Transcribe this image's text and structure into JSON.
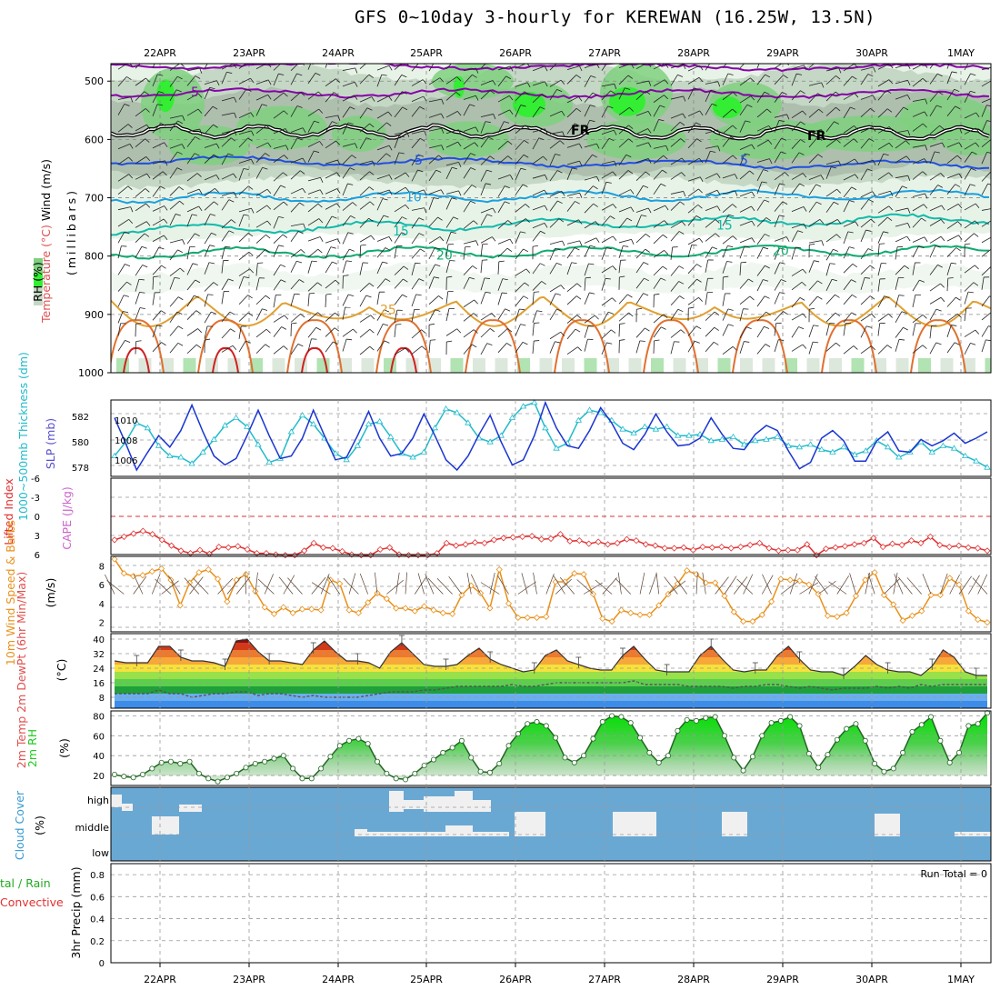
{
  "title": "GFS 0~10day 3-hourly for KEREWAN (16.25W, 13.5N)",
  "dates": [
    "22APR",
    "23APR",
    "24APR",
    "25APR",
    "26APR",
    "27APR",
    "28APR",
    "29APR",
    "30APR",
    "1MAY"
  ],
  "colors": {
    "rh_light": "#e8f3e8",
    "rh_mid": "#c5d8c5",
    "rh_gray": "#aebfae",
    "rh_green": "#7fd07f",
    "rh_bright": "#33ee33",
    "temp_minus5": "#8800aa",
    "temp_zero": "#000000",
    "temp_5": "#1f4fe0",
    "temp_10": "#1aa0e0",
    "temp_15": "#10bbaa",
    "temp_20": "#10aa70",
    "temp_25": "#e0a030",
    "temp_30": "#e07030",
    "temp_35": "#d02020",
    "slp": "#1a35d0",
    "thickness": "#20bbcc",
    "lifted": "#e03030",
    "cape": "#cc66cc",
    "wind10": "#e8901a",
    "cloud": "#6aa8d4",
    "cloud_gap": "#f0f0f0",
    "rh2m": "#22cc22",
    "precip_rain": "#22aa22",
    "precip_conv": "#e03030"
  },
  "panels": {
    "upper": {
      "ylabel_wind": "Wind (m/s)",
      "ylabel_temp": "Temperature (°C)",
      "ylabel_rh": "RH (%)",
      "ylabel_pressure": "(millibars)",
      "yticks": [
        "500",
        "600",
        "700",
        "800",
        "900",
        "1000"
      ],
      "contour_labels": [
        "-5",
        "FR",
        "FR",
        "5",
        "5",
        "10",
        "15",
        "15",
        "20",
        "20",
        "25"
      ]
    },
    "slp": {
      "ylabel_thick": "1000~500mb Thickness (dm)",
      "ylabel_slp": "SLP (mb)",
      "yticks_left": [
        "582",
        "580",
        "578"
      ],
      "yticks_right": [
        "1010",
        "1008",
        "1006"
      ]
    },
    "li": {
      "ylabel_li": "Lifted Index",
      "ylabel_cape": "CAPE (J/kg)",
      "yticks": [
        "-6",
        "-3",
        "0",
        "3",
        "6"
      ]
    },
    "wind10": {
      "ylabel": "10m Wind Speed & Barbs",
      "unit": "(m/s)",
      "yticks": [
        "8",
        "6",
        "4",
        "2"
      ]
    },
    "temp2m": {
      "ylabel": "2m Temp 2m DewPt (6hr Min/Max)",
      "unit": "(°C)",
      "yticks": [
        "40",
        "32",
        "24",
        "16",
        "8"
      ]
    },
    "rh2m": {
      "ylabel": "2m RH",
      "unit": "(%)",
      "yticks": [
        "80",
        "60",
        "40",
        "20"
      ]
    },
    "cloud": {
      "ylabel": "Cloud Cover",
      "unit": "(%)",
      "levels": [
        "high",
        "middle",
        "low"
      ]
    },
    "precip": {
      "ylabel_total": "tal / Rain",
      "ylabel_conv": "Convective",
      "ylabel_main": "3hr Precip (mm)",
      "yticks": [
        "0.8",
        "0.6",
        "0.4",
        "0.2",
        "0"
      ],
      "run_total": "Run Total = 0"
    }
  },
  "chart_data": [
    {
      "type": "line",
      "name": "SLP and thickness",
      "series": [
        {
          "name": "SLP (mb)",
          "values": [
            1009.6,
            1007.6,
            1005.5,
            1006.9,
            1008.2,
            1007.3,
            1008.6,
            1010.6,
            1008.5,
            1006.6,
            1005.9,
            1006.4,
            1008.2,
            1010.2,
            1008.2,
            1006.4,
            1006.6,
            1008.0,
            1010.2,
            1008.2,
            1006.3,
            1006.5,
            1008.2,
            1010.1,
            1008.0,
            1006.6,
            1006.8,
            1008.0,
            1009.9,
            1008.2,
            1006.3,
            1005.5,
            1006.6,
            1008.3,
            1009.8,
            1007.7,
            1005.9,
            1006.3,
            1008.2,
            1010.8,
            1008.8,
            1007.4,
            1007.2,
            1008.6,
            1010.4,
            1009.2,
            1007.6,
            1007.1,
            1008.3,
            1009.9,
            1008.5,
            1007.4,
            1007.5,
            1008.0,
            1009.6,
            1008.3,
            1007.2,
            1007.1,
            1008.3,
            1009.0,
            1008.6,
            1007.0,
            1005.6,
            1006.1,
            1008.0,
            1008.6,
            1007.8,
            1006.2,
            1006.2,
            1007.8,
            1008.5,
            1007.0,
            1006.9,
            1007.9,
            1007.4,
            1007.8,
            1008.4,
            1007.6,
            1008.0,
            1008.5
          ]
        },
        {
          "name": "Thickness (dm)",
          "values": [
            578.6,
            579.7,
            581.2,
            580.8,
            579.4,
            578.6,
            578.5,
            578.0,
            578.9,
            579.9,
            581.0,
            581.6,
            580.9,
            579.5,
            578.1,
            578.4,
            580.5,
            581.8,
            581.1,
            580.0,
            578.8,
            578.3,
            579.4,
            581.1,
            581.3,
            580.1,
            578.8,
            578.5,
            578.9,
            580.8,
            582.3,
            582.0,
            581.2,
            580.0,
            579.7,
            580.2,
            581.6,
            582.5,
            582.8,
            580.8,
            579.2,
            579.6,
            581.4,
            582.2,
            582.0,
            581.4,
            580.7,
            580.4,
            580.9,
            580.7,
            580.9,
            580.2,
            580.2,
            580.3,
            579.8,
            579.9,
            580.1,
            579.5,
            579.8,
            579.9,
            580.1,
            579.4,
            579.3,
            579.5,
            579.1,
            578.9,
            579.3,
            578.7,
            579.0,
            579.8,
            579.3,
            578.5,
            578.9,
            579.7,
            578.9,
            579.4,
            579.2,
            578.6,
            578.2,
            577.7
          ]
        }
      ],
      "ylim_left": [
        577,
        583
      ],
      "ylim_right": [
        1005,
        1011
      ]
    },
    {
      "type": "line",
      "name": "Lifted Index",
      "values": [
        3.7,
        3.2,
        2.7,
        2.3,
        2.8,
        3.7,
        4.6,
        5.4,
        5.8,
        5.3,
        5.9,
        4.8,
        4.9,
        4.7,
        5.2,
        5.8,
        5.8,
        6.0,
        6.1,
        6.1,
        5.4,
        4.2,
        4.9,
        5.0,
        5.5,
        6.0,
        6.1,
        6.1,
        5.2,
        4.9,
        6.0,
        6.1,
        6.1,
        6.1,
        5.8,
        4.2,
        4.6,
        4.4,
        4.1,
        4.2,
        3.7,
        3.4,
        3.3,
        3.2,
        3.1,
        3.6,
        3.5,
        2.8,
        3.9,
        3.8,
        4.3,
        4.0,
        4.4,
        4.2,
        3.6,
        3.8,
        4.4,
        4.6,
        5.0,
        5.0,
        4.9,
        5.3,
        4.8,
        4.9,
        4.8,
        5.0,
        4.8,
        4.5,
        4.2,
        5.0,
        5.4,
        5.3,
        5.3,
        4.4,
        6.1,
        5.1,
        4.9,
        4.7,
        4.4,
        4.2,
        3.4,
        4.8,
        4.3,
        4.5,
        3.8,
        4.2,
        3.2,
        4.5,
        4.8,
        4.6,
        4.9,
        5.0,
        5.4
      ],
      "ylim": [
        6,
        -6
      ]
    },
    {
      "type": "line",
      "name": "10m Wind Speed (m/s)",
      "values": [
        8.7,
        7.2,
        6.9,
        7.0,
        7.4,
        7.7,
        6.5,
        3.8,
        6.2,
        7.3,
        7.6,
        6.6,
        4.2,
        6.5,
        7.1,
        5.3,
        3.6,
        2.9,
        3.6,
        3.0,
        3.4,
        3.4,
        3.3,
        6.5,
        6.1,
        3.3,
        3.0,
        4.1,
        5.1,
        4.5,
        3.5,
        3.5,
        3.2,
        3.7,
        3.3,
        3.0,
        2.9,
        4.9,
        5.9,
        5.1,
        3.5,
        7.6,
        4.0,
        2.5,
        2.5,
        2.5,
        2.6,
        6.3,
        6.3,
        7.2,
        7.1,
        5.0,
        2.4,
        2.1,
        3.3,
        3.0,
        2.8,
        2.8,
        3.8,
        5.0,
        6.1,
        7.5,
        7.1,
        6.2,
        6.2,
        4.8,
        3.1,
        2.1,
        2.1,
        2.8,
        4.2,
        6.6,
        6.5,
        6.4,
        6.0,
        5.0,
        2.7,
        2.6,
        3.0,
        4.8,
        6.5,
        7.3,
        4.9,
        3.9,
        2.2,
        2.7,
        3.2,
        4.9,
        4.9,
        6.7,
        6.0,
        3.2,
        2.3,
        2.0
      ],
      "ylim": [
        1,
        9
      ]
    },
    {
      "type": "area",
      "name": "2m Temp (°C)",
      "temp_values": [
        28,
        27,
        27,
        27,
        36,
        36,
        30,
        28,
        28,
        27,
        25,
        39,
        40,
        33,
        28,
        28,
        27,
        26,
        34,
        39,
        33,
        28,
        28,
        27,
        24,
        33,
        38,
        32,
        26,
        25,
        25,
        26,
        31,
        35,
        29,
        26,
        24,
        22,
        23,
        31,
        34,
        28,
        26,
        24,
        23,
        23,
        31,
        36,
        29,
        23,
        22,
        22,
        22,
        31,
        36,
        29,
        23,
        22,
        23,
        23,
        31,
        36,
        29,
        23,
        22,
        22,
        20,
        25,
        31,
        26,
        23,
        22,
        22,
        20,
        25,
        34,
        30,
        22,
        20,
        20
      ],
      "dewpoint_values": [
        10,
        10,
        10,
        10,
        12,
        10,
        10,
        8,
        9,
        10,
        10,
        11,
        11,
        9,
        10,
        10,
        9,
        8,
        9,
        8,
        8,
        8,
        8,
        9,
        10,
        11,
        11,
        11,
        12,
        12,
        13,
        14,
        14,
        14,
        14,
        14,
        15,
        14,
        14,
        15,
        16,
        16,
        16,
        16,
        16,
        16,
        16,
        17,
        15,
        15,
        15,
        15,
        14,
        14,
        14,
        14,
        13,
        14,
        14,
        15,
        15,
        14,
        13,
        14,
        13,
        12,
        13,
        13,
        13,
        14,
        13,
        14,
        13,
        15,
        14,
        15,
        15,
        15,
        15,
        15
      ],
      "ylim": [
        2,
        43
      ]
    },
    {
      "type": "area",
      "name": "2m RH (%)",
      "values": [
        21,
        19,
        18,
        21,
        27,
        33,
        34,
        32,
        34,
        22,
        17,
        14,
        18,
        22,
        28,
        32,
        34,
        37,
        40,
        27,
        17,
        17,
        27,
        39,
        50,
        55,
        57,
        52,
        34,
        22,
        17,
        16,
        22,
        30,
        36,
        43,
        48,
        55,
        38,
        24,
        23,
        32,
        50,
        62,
        72,
        74,
        70,
        58,
        38,
        33,
        40,
        57,
        74,
        80,
        79,
        73,
        58,
        43,
        33,
        40,
        65,
        76,
        75,
        78,
        79,
        60,
        38,
        25,
        39,
        60,
        73,
        75,
        79,
        70,
        42,
        28,
        41,
        56,
        67,
        72,
        55,
        32,
        24,
        27,
        43,
        64,
        71,
        79,
        55,
        33,
        43,
        70,
        72,
        83
      ],
      "ylim": [
        10,
        85
      ]
    },
    {
      "type": "bar",
      "name": "Cloud Cover (%)",
      "categories": [
        "high",
        "middle",
        "low"
      ],
      "note": "high cloud mostly overcast with gaps around 25APR; middle cloud gaps near 22APR, 25APR-26APR, 27APR, 28APR, 30APR"
    },
    {
      "type": "bar",
      "name": "3hr Precip (mm)",
      "values": [
        0
      ],
      "ylim": [
        0,
        0.9
      ]
    }
  ]
}
